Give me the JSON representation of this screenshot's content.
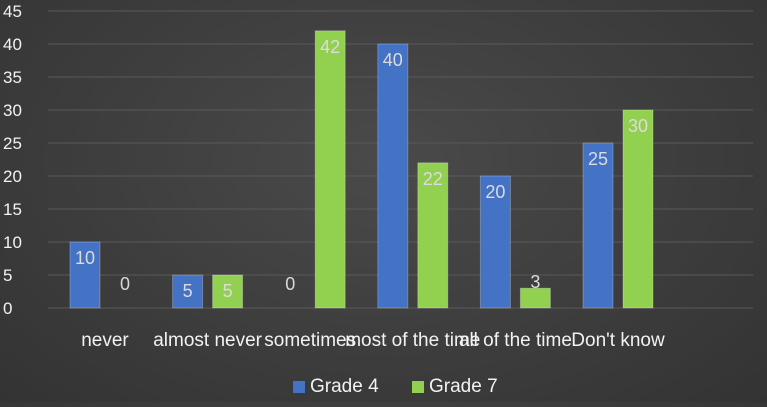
{
  "chart_data": {
    "type": "bar",
    "categories": [
      "never",
      "almost never",
      "sometimes",
      "most of the time",
      "all of the time",
      "Don't know"
    ],
    "series": [
      {
        "name": "Grade 4",
        "values": [
          10,
          5,
          0,
          40,
          20,
          25
        ],
        "color": "#4472c4"
      },
      {
        "name": "Grade 7",
        "values": [
          0,
          5,
          42,
          22,
          3,
          30
        ],
        "color": "#92d050"
      }
    ],
    "ylim": [
      0,
      45
    ],
    "yticks": [
      0,
      5,
      10,
      15,
      20,
      25,
      30,
      35,
      40,
      45
    ],
    "grid": true,
    "legend": "bottom",
    "data_labels": true
  },
  "colors": {
    "background": "#404040",
    "gridline": "#595959",
    "text": "#f2f2f2",
    "label_on_bar": "#dcdcdc",
    "label_outside": "#d9d9d9"
  }
}
